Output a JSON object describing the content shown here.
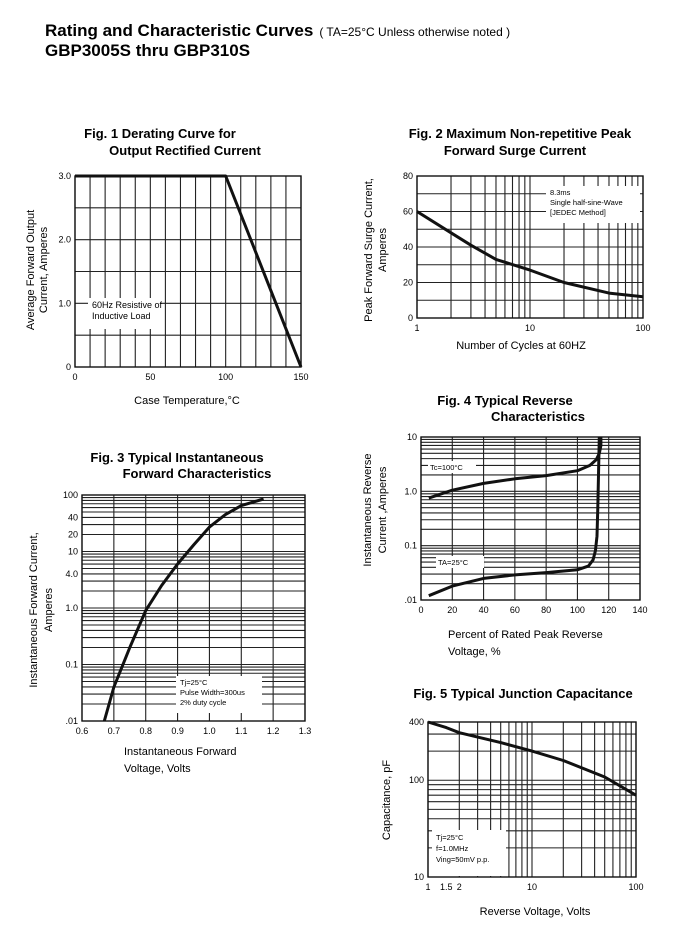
{
  "header": {
    "title": "Rating and Characteristic Curves",
    "condition": "( TA=25°C Unless otherwise noted )",
    "part_range": "GBP3005S  thru  GBP310S"
  },
  "chart_data": [
    {
      "type": "line",
      "title": [
        "Fig. 1 Derating Curve for",
        "Output Rectified Current"
      ],
      "xlabel": [
        "Case Temperature,°C"
      ],
      "ylabel": [
        "Average Forward Output",
        "Current, Amperes"
      ],
      "xlim": [
        0,
        150
      ],
      "ylim": [
        0,
        3.0
      ],
      "xscale": "linear",
      "yscale": "linear",
      "grid": true,
      "xticks": [
        {
          "v": 0,
          "t": "0"
        },
        {
          "v": 50,
          "t": "50"
        },
        {
          "v": 100,
          "t": "100"
        },
        {
          "v": 150,
          "t": "150"
        }
      ],
      "yticks": [
        {
          "v": 0,
          "t": "0"
        },
        {
          "v": 1,
          "t": "1.0"
        },
        {
          "v": 2,
          "t": "2.0"
        },
        {
          "v": 3,
          "t": "3.0"
        }
      ],
      "annotation": [
        "60Hz Resistive of",
        "Inductive Load"
      ],
      "series": [
        {
          "x": [
            0,
            100,
            150
          ],
          "y": [
            3.0,
            3.0,
            0
          ]
        }
      ]
    },
    {
      "type": "line",
      "title": [
        "Fig. 2 Maximum Non-repetitive Peak",
        "Forward Surge Current"
      ],
      "xlabel": [
        "Number of Cycles at 60HZ"
      ],
      "ylabel": [
        "Peak Forward Surge Current,",
        "Amperes"
      ],
      "xlim": [
        1,
        100
      ],
      "ylim": [
        0,
        80
      ],
      "xscale": "log",
      "yscale": "linear",
      "grid": true,
      "xticks": [
        {
          "v": 1,
          "t": "1"
        },
        {
          "v": 10,
          "t": "10"
        },
        {
          "v": 100,
          "t": "100"
        }
      ],
      "yticks": [
        {
          "v": 0,
          "t": "0"
        },
        {
          "v": 20,
          "t": "20"
        },
        {
          "v": 40,
          "t": "40"
        },
        {
          "v": 60,
          "t": "60"
        },
        {
          "v": 80,
          "t": "80"
        }
      ],
      "annotation": [
        "8.3ms",
        "Single half-sine-Wave",
        "[JEDEC Method]"
      ],
      "series": [
        {
          "x": [
            1,
            2,
            3,
            5,
            10,
            20,
            50,
            100
          ],
          "y": [
            60,
            48,
            41,
            33,
            27,
            20,
            14,
            12
          ]
        }
      ]
    },
    {
      "type": "line",
      "title": [
        "Fig. 3 Typical Instantaneous",
        "Forward Characteristics"
      ],
      "xlabel": [
        "Instantaneous Forward",
        "Voltage, Volts"
      ],
      "ylabel": [
        "Instantaneous Forward Current,",
        "Amperes"
      ],
      "xlim": [
        0.6,
        1.3
      ],
      "ylim": [
        0.01,
        100
      ],
      "xscale": "linear",
      "yscale": "log",
      "grid": true,
      "xticks": [
        {
          "v": 0.6,
          "t": "0.6"
        },
        {
          "v": 0.7,
          "t": "0.7"
        },
        {
          "v": 0.8,
          "t": "0.8"
        },
        {
          "v": 0.9,
          "t": "0.9"
        },
        {
          "v": 1.0,
          "t": "1.0"
        },
        {
          "v": 1.1,
          "t": "1.1"
        },
        {
          "v": 1.2,
          "t": "1.2"
        },
        {
          "v": 1.3,
          "t": "1.3"
        }
      ],
      "yticks": [
        {
          "v": 0.01,
          "t": ".01"
        },
        {
          "v": 0.1,
          "t": "0.1"
        },
        {
          "v": 1,
          "t": "1.0"
        },
        {
          "v": 4,
          "t": "4.0"
        },
        {
          "v": 10,
          "t": "10"
        },
        {
          "v": 20,
          "t": "20"
        },
        {
          "v": 40,
          "t": "40"
        },
        {
          "v": 100,
          "t": "100"
        }
      ],
      "annotation": [
        "Tj=25°C",
        "Pulse Width=300us",
        "2% duty cycle"
      ],
      "series": [
        {
          "x": [
            0.67,
            0.7,
            0.75,
            0.8,
            0.85,
            0.9,
            0.95,
            1.0,
            1.05,
            1.1,
            1.17
          ],
          "y": [
            0.01,
            0.04,
            0.2,
            0.9,
            2.5,
            6,
            13,
            27,
            45,
            65,
            85
          ]
        }
      ]
    },
    {
      "type": "line",
      "title": [
        "Fig. 4 Typical Reverse",
        "Characteristics"
      ],
      "xlabel": [
        "Percent of Rated Peak Reverse",
        "Voltage, %"
      ],
      "ylabel": [
        "Instantaneous Reverse",
        "Current ,Amperes"
      ],
      "xlim": [
        0,
        140
      ],
      "ylim": [
        0.01,
        10
      ],
      "xscale": "linear",
      "yscale": "log",
      "grid": true,
      "xticks": [
        {
          "v": 0,
          "t": "0"
        },
        {
          "v": 20,
          "t": "20"
        },
        {
          "v": 40,
          "t": "40"
        },
        {
          "v": 60,
          "t": "60"
        },
        {
          "v": 80,
          "t": "80"
        },
        {
          "v": 100,
          "t": "100"
        },
        {
          "v": 120,
          "t": "120"
        },
        {
          "v": 140,
          "t": "140"
        }
      ],
      "yticks": [
        {
          "v": 0.01,
          "t": ".01"
        },
        {
          "v": 0.1,
          "t": "0.1"
        },
        {
          "v": 1,
          "t": "1.0"
        },
        {
          "v": 10,
          "t": "10"
        }
      ],
      "series": [
        {
          "name": "Tc=100°C",
          "x": [
            5,
            20,
            40,
            60,
            80,
            100,
            108,
            112,
            114,
            115,
            115
          ],
          "y": [
            0.75,
            1.05,
            1.4,
            1.7,
            1.95,
            2.4,
            3.0,
            3.8,
            5,
            7,
            10
          ]
        },
        {
          "name": "TA=25°C",
          "x": [
            5,
            20,
            40,
            60,
            80,
            100,
            107,
            110,
            111.5,
            112.5,
            113,
            113.5,
            114
          ],
          "y": [
            0.012,
            0.018,
            0.025,
            0.029,
            0.032,
            0.036,
            0.042,
            0.055,
            0.08,
            0.15,
            0.5,
            2,
            10
          ]
        }
      ]
    },
    {
      "type": "line",
      "title": [
        "Fig. 5 Typical Junction Capacitance"
      ],
      "xlabel": [
        "Reverse Voltage, Volts"
      ],
      "ylabel": [
        "Capacitance, pF"
      ],
      "xlim": [
        1,
        100
      ],
      "ylim": [
        10,
        400
      ],
      "xscale": "log",
      "yscale": "log",
      "grid": true,
      "xticks": [
        {
          "v": 1,
          "t": "1"
        },
        {
          "v": 1.5,
          "t": "1.5"
        },
        {
          "v": 2,
          "t": "2"
        },
        {
          "v": 10,
          "t": "10"
        },
        {
          "v": 100,
          "t": "100"
        }
      ],
      "yticks": [
        {
          "v": 10,
          "t": "10"
        },
        {
          "v": 100,
          "t": "100"
        },
        {
          "v": 400,
          "t": "400"
        }
      ],
      "annotation": [
        "Tj=25°C",
        "f=1.0MHz",
        "Ving=50mV p.p."
      ],
      "series": [
        {
          "x": [
            1,
            1.5,
            2,
            5,
            10,
            20,
            50,
            100
          ],
          "y": [
            400,
            350,
            310,
            245,
            200,
            160,
            108,
            70
          ]
        }
      ]
    }
  ]
}
